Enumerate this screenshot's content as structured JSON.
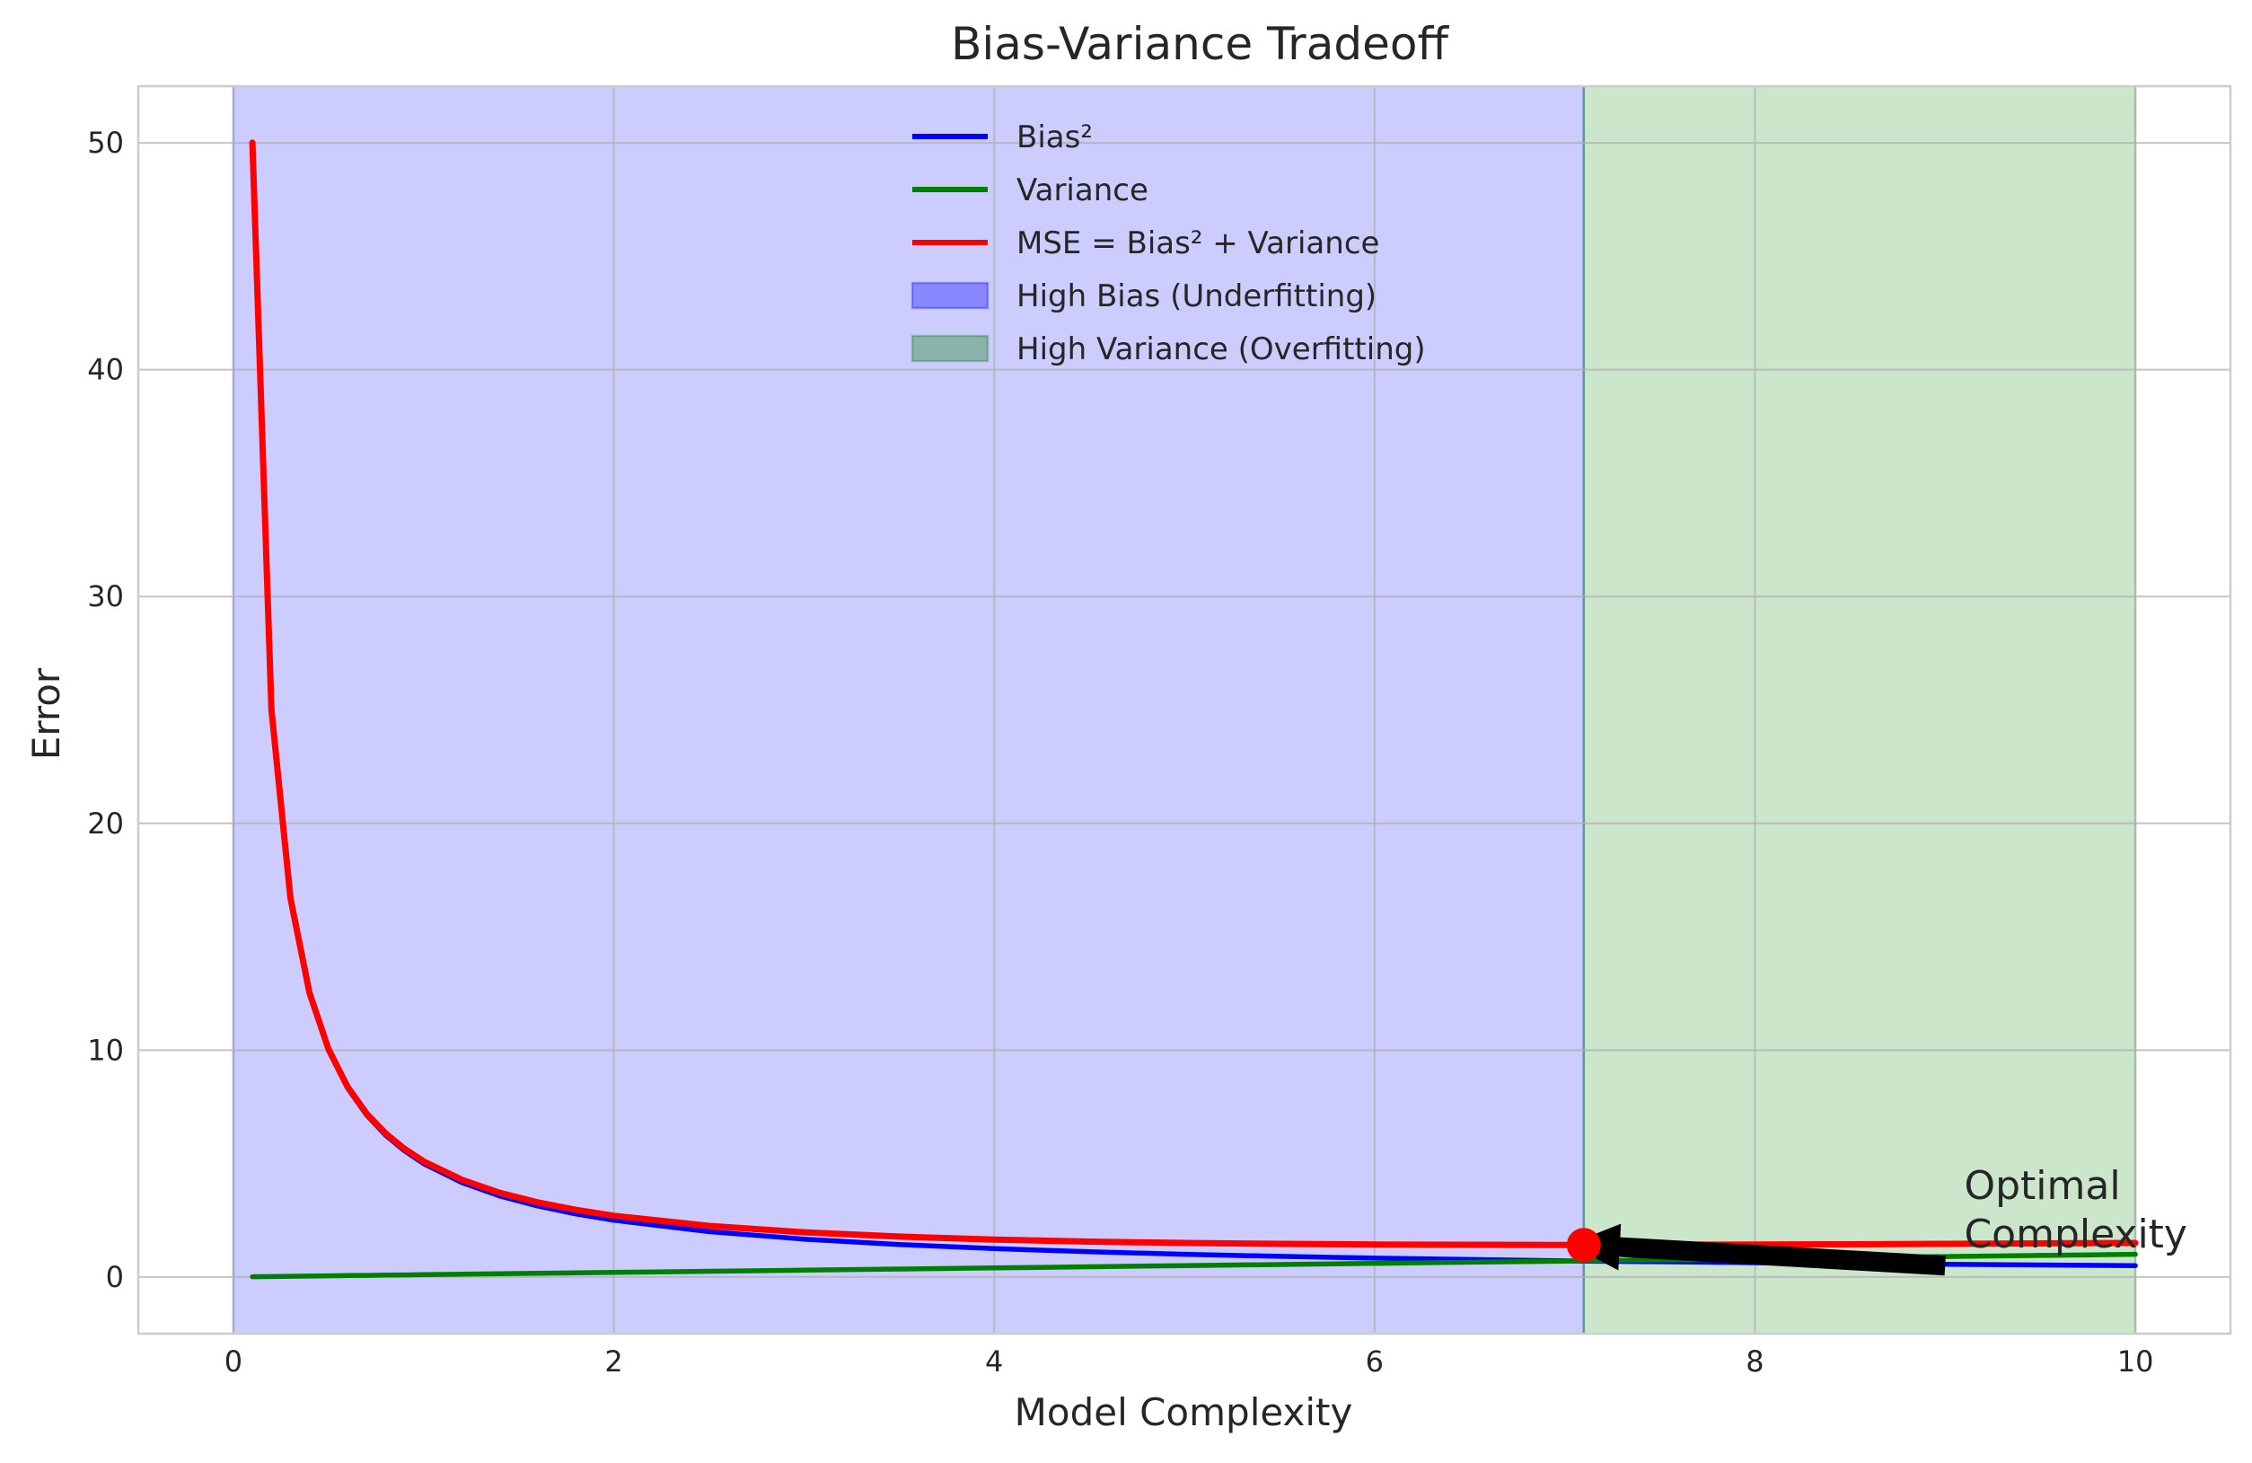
{
  "chart_data": {
    "type": "line",
    "title": "Bias-Variance Tradeoff",
    "xlabel": "Model Complexity",
    "ylabel": "Error",
    "xlim": [
      -0.5,
      10.5
    ],
    "ylim": [
      -2.5,
      52.5
    ],
    "xticks": [
      0,
      2,
      4,
      6,
      8,
      10
    ],
    "yticks": [
      0,
      10,
      20,
      30,
      40,
      50
    ],
    "grid": true,
    "legend_position": "upper center",
    "series": [
      {
        "name": "Bias²",
        "color": "#0000ff",
        "x": [
          0.1,
          0.2,
          0.3,
          0.4,
          0.5,
          0.6,
          0.7,
          0.8,
          0.9,
          1.0,
          1.2,
          1.4,
          1.6,
          1.8,
          2.0,
          2.5,
          3.0,
          3.5,
          4.0,
          4.5,
          5.0,
          5.5,
          6.0,
          6.5,
          7.0,
          7.1,
          7.5,
          8.0,
          8.5,
          9.0,
          9.5,
          10.0
        ],
        "values": [
          50.0,
          25.0,
          16.67,
          12.5,
          10.0,
          8.33,
          7.14,
          6.25,
          5.56,
          5.0,
          4.17,
          3.57,
          3.13,
          2.78,
          2.5,
          2.0,
          1.67,
          1.43,
          1.25,
          1.11,
          1.0,
          0.91,
          0.83,
          0.77,
          0.71,
          0.7,
          0.67,
          0.63,
          0.59,
          0.56,
          0.53,
          0.5
        ]
      },
      {
        "name": "Variance",
        "color": "#008000",
        "x": [
          0.1,
          0.2,
          0.3,
          0.4,
          0.5,
          0.6,
          0.7,
          0.8,
          0.9,
          1.0,
          1.2,
          1.4,
          1.6,
          1.8,
          2.0,
          2.5,
          3.0,
          3.5,
          4.0,
          4.5,
          5.0,
          5.5,
          6.0,
          6.5,
          7.0,
          7.1,
          7.5,
          8.0,
          8.5,
          9.0,
          9.5,
          10.0
        ],
        "values": [
          0.01,
          0.02,
          0.03,
          0.04,
          0.05,
          0.06,
          0.07,
          0.08,
          0.09,
          0.1,
          0.12,
          0.14,
          0.16,
          0.18,
          0.2,
          0.25,
          0.3,
          0.35,
          0.4,
          0.45,
          0.5,
          0.55,
          0.6,
          0.65,
          0.7,
          0.71,
          0.75,
          0.8,
          0.85,
          0.9,
          0.95,
          1.0
        ]
      },
      {
        "name": "MSE = Bias² + Variance",
        "color": "#ff0000",
        "x": [
          0.1,
          0.2,
          0.3,
          0.4,
          0.5,
          0.6,
          0.7,
          0.8,
          0.9,
          1.0,
          1.2,
          1.4,
          1.6,
          1.8,
          2.0,
          2.5,
          3.0,
          3.5,
          4.0,
          4.5,
          5.0,
          5.5,
          6.0,
          6.5,
          7.0,
          7.1,
          7.5,
          8.0,
          8.5,
          9.0,
          9.5,
          10.0
        ],
        "values": [
          50.01,
          25.02,
          16.7,
          12.54,
          10.05,
          8.39,
          7.21,
          6.33,
          5.65,
          5.1,
          4.29,
          3.71,
          3.29,
          2.96,
          2.7,
          2.25,
          1.97,
          1.78,
          1.65,
          1.56,
          1.5,
          1.46,
          1.43,
          1.42,
          1.41,
          1.41,
          1.42,
          1.43,
          1.44,
          1.46,
          1.48,
          1.5
        ]
      }
    ],
    "regions": [
      {
        "name": "High Bias (Underfitting)",
        "x_start": 0.0,
        "x_end": 7.1,
        "color": "#0000ff",
        "alpha": 0.2
      },
      {
        "name": "High Variance (Overfitting)",
        "x_start": 7.1,
        "x_end": 10.0,
        "color": "#008000",
        "alpha": 0.2
      }
    ],
    "optimal_point": {
      "x": 7.1,
      "y": 1.41,
      "color": "#ff0000"
    },
    "annotation": {
      "lines": [
        "Optimal",
        "Complexity"
      ],
      "text_x": 9.1,
      "text_y": 1.3,
      "arrow_tail_x": 9.0,
      "arrow_tail_y": 0.5,
      "arrow_head_x": 7.1,
      "arrow_head_y": 1.41
    }
  }
}
